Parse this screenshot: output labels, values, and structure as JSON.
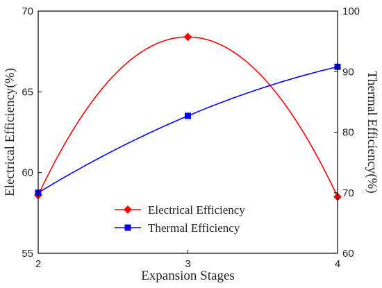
{
  "chart_data": {
    "type": "line",
    "xlabel": "Expansion Stages",
    "ylabel_left": "Electrical Efficiency(%)",
    "ylabel_right": "Thermal Efficiency(%)",
    "x": [
      2,
      3,
      4
    ],
    "x_ticks": [
      "2",
      "3",
      "4"
    ],
    "xlim": [
      2,
      4
    ],
    "ylim_left": [
      55,
      70
    ],
    "yticks_left": [
      "55",
      "60",
      "65",
      "70"
    ],
    "ylim_right": [
      60,
      100
    ],
    "yticks_right": [
      "60",
      "70",
      "80",
      "90",
      "100"
    ],
    "grid": false,
    "legend_position": "bottom-center",
    "series": [
      {
        "name": "Electrical Efficiency",
        "axis": "left",
        "values": [
          58.6,
          68.4,
          58.5
        ],
        "color": "#ff0000",
        "marker": "diamond",
        "smooth": true
      },
      {
        "name": "Thermal Efficiency",
        "axis": "right",
        "values": [
          70.0,
          82.7,
          90.8
        ],
        "color": "#0000ff",
        "marker": "square",
        "smooth": true
      }
    ]
  }
}
